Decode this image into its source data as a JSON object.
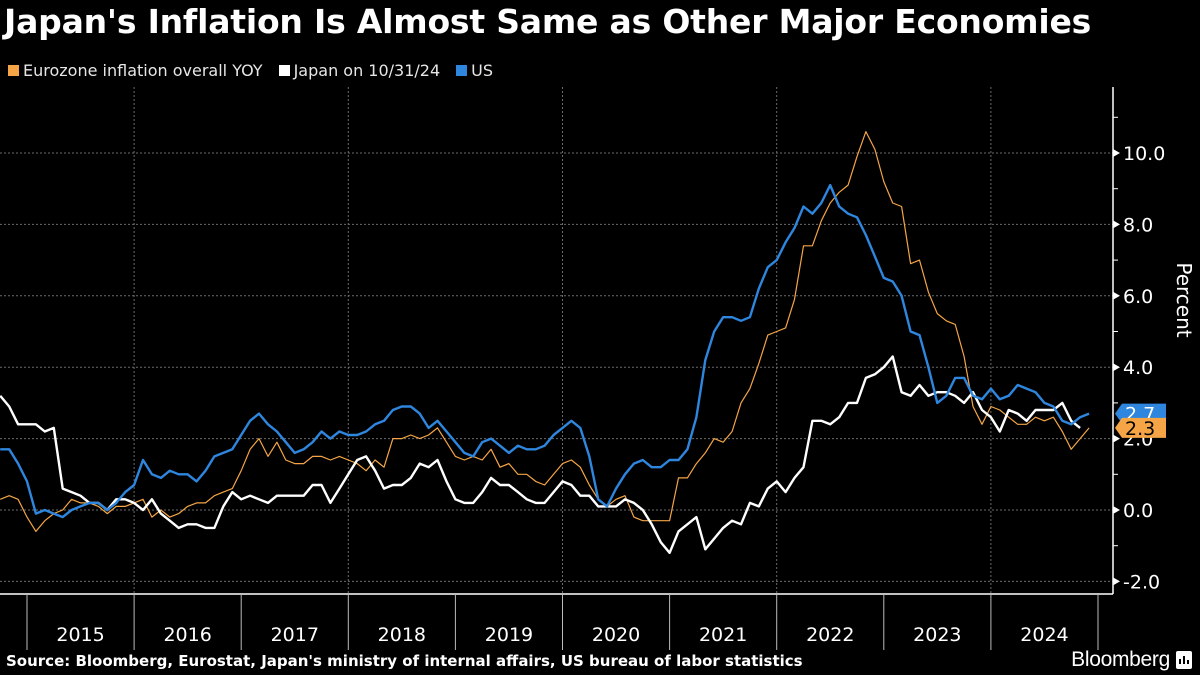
{
  "header": {
    "title": "Japan's Inflation Is Almost Same as Other Major Economies"
  },
  "footer": {
    "source": "Source: Bloomberg, Eurostat, Japan's ministry of internal affairs, US bureau of labor statistics",
    "brand": "Bloomberg"
  },
  "colors": {
    "background": "#000000",
    "eurozone": "#f5a546",
    "japan": "#ffffff",
    "us": "#2e86de",
    "grid": "#6b6b6b"
  },
  "chart_data": {
    "type": "line",
    "title": "Japan's Inflation Is Almost Same as Other Major Economies",
    "xlabel": "",
    "ylabel": "Percent",
    "ylim": [
      -2.4,
      11.8
    ],
    "yticks": [
      "-2.0",
      "0.0",
      "2.0",
      "4.0",
      "6.0",
      "8.0",
      "10.0"
    ],
    "ytick_values": [
      -2,
      0,
      2,
      4,
      6,
      8,
      10
    ],
    "xlim": [
      "2014-09",
      "2024-12"
    ],
    "xticks": [
      "2015",
      "2016",
      "2017",
      "2018",
      "2019",
      "2020",
      "2021",
      "2022",
      "2023",
      "2024"
    ],
    "grid": true,
    "legend_position": "top-left",
    "x_start": "2014-09",
    "x_frequency": "monthly",
    "series": [
      {
        "name": "Eurozone inflation overall YOY",
        "color": "#f5a546",
        "last_label": "2.3",
        "values": [
          0.3,
          0.4,
          0.3,
          -0.2,
          -0.6,
          -0.3,
          -0.1,
          0.0,
          0.3,
          0.2,
          0.2,
          0.1,
          -0.1,
          0.1,
          0.1,
          0.2,
          0.3,
          -0.2,
          0.0,
          -0.2,
          -0.1,
          0.1,
          0.2,
          0.2,
          0.4,
          0.5,
          0.6,
          1.1,
          1.7,
          2.0,
          1.5,
          1.9,
          1.4,
          1.3,
          1.3,
          1.5,
          1.5,
          1.4,
          1.5,
          1.4,
          1.3,
          1.1,
          1.4,
          1.2,
          2.0,
          2.0,
          2.1,
          2.0,
          2.1,
          2.3,
          1.9,
          1.5,
          1.4,
          1.5,
          1.4,
          1.7,
          1.2,
          1.3,
          1.0,
          1.0,
          0.8,
          0.7,
          1.0,
          1.3,
          1.4,
          1.2,
          0.7,
          0.3,
          0.1,
          0.3,
          0.4,
          -0.2,
          -0.3,
          -0.3,
          -0.3,
          -0.3,
          0.9,
          0.9,
          1.3,
          1.6,
          2.0,
          1.9,
          2.2,
          3.0,
          3.4,
          4.1,
          4.9,
          5.0,
          5.1,
          5.9,
          7.4,
          7.4,
          8.1,
          8.6,
          8.9,
          9.1,
          9.9,
          10.6,
          10.1,
          9.2,
          8.6,
          8.5,
          6.9,
          7.0,
          6.1,
          5.5,
          5.3,
          5.2,
          4.3,
          2.9,
          2.4,
          2.9,
          2.8,
          2.6,
          2.4,
          2.4,
          2.6,
          2.5,
          2.6,
          2.2,
          1.7,
          2.0,
          2.3
        ]
      },
      {
        "name": "Japan on 10/31/24",
        "color": "#ffffff",
        "last_label": "",
        "values": [
          3.2,
          2.9,
          2.4,
          2.4,
          2.4,
          2.2,
          2.3,
          0.6,
          0.5,
          0.4,
          0.2,
          0.2,
          0.0,
          0.3,
          0.3,
          0.2,
          0.0,
          0.3,
          -0.1,
          -0.3,
          -0.5,
          -0.4,
          -0.4,
          -0.5,
          -0.5,
          0.1,
          0.5,
          0.3,
          0.4,
          0.3,
          0.2,
          0.4,
          0.4,
          0.4,
          0.4,
          0.7,
          0.7,
          0.2,
          0.6,
          1.0,
          1.4,
          1.5,
          1.1,
          0.6,
          0.7,
          0.7,
          0.9,
          1.3,
          1.2,
          1.4,
          0.8,
          0.3,
          0.2,
          0.2,
          0.5,
          0.9,
          0.7,
          0.7,
          0.5,
          0.3,
          0.2,
          0.2,
          0.5,
          0.8,
          0.7,
          0.4,
          0.4,
          0.1,
          0.1,
          0.1,
          0.3,
          0.2,
          0.0,
          -0.4,
          -0.9,
          -1.2,
          -0.6,
          -0.4,
          -0.2,
          -1.1,
          -0.8,
          -0.5,
          -0.3,
          -0.4,
          0.2,
          0.1,
          0.6,
          0.8,
          0.5,
          0.9,
          1.2,
          2.5,
          2.5,
          2.4,
          2.6,
          3.0,
          3.0,
          3.7,
          3.8,
          4.0,
          4.3,
          3.3,
          3.2,
          3.5,
          3.2,
          3.3,
          3.3,
          3.2,
          3.0,
          3.3,
          2.8,
          2.6,
          2.2,
          2.8,
          2.7,
          2.5,
          2.8,
          2.8,
          2.8,
          3.0,
          2.5,
          2.3
        ]
      },
      {
        "name": "US",
        "color": "#2e86de",
        "last_label": "2.7",
        "values": [
          1.7,
          1.7,
          1.3,
          0.8,
          -0.1,
          0.0,
          -0.1,
          -0.2,
          0.0,
          0.1,
          0.2,
          0.2,
          0.0,
          0.2,
          0.5,
          0.7,
          1.4,
          1.0,
          0.9,
          1.1,
          1.0,
          1.0,
          0.8,
          1.1,
          1.5,
          1.6,
          1.7,
          2.1,
          2.5,
          2.7,
          2.4,
          2.2,
          1.9,
          1.6,
          1.7,
          1.9,
          2.2,
          2.0,
          2.2,
          2.1,
          2.1,
          2.2,
          2.4,
          2.5,
          2.8,
          2.9,
          2.9,
          2.7,
          2.3,
          2.5,
          2.2,
          1.9,
          1.6,
          1.5,
          1.9,
          2.0,
          1.8,
          1.6,
          1.8,
          1.7,
          1.7,
          1.8,
          2.1,
          2.3,
          2.5,
          2.3,
          1.5,
          0.3,
          0.1,
          0.6,
          1.0,
          1.3,
          1.4,
          1.2,
          1.2,
          1.4,
          1.4,
          1.7,
          2.6,
          4.2,
          5.0,
          5.4,
          5.4,
          5.3,
          5.4,
          6.2,
          6.8,
          7.0,
          7.5,
          7.9,
          8.5,
          8.3,
          8.6,
          9.1,
          8.5,
          8.3,
          8.2,
          7.7,
          7.1,
          6.5,
          6.4,
          6.0,
          5.0,
          4.9,
          4.0,
          3.0,
          3.2,
          3.7,
          3.7,
          3.2,
          3.1,
          3.4,
          3.1,
          3.2,
          3.5,
          3.4,
          3.3,
          3.0,
          2.9,
          2.5,
          2.4,
          2.6,
          2.7
        ]
      }
    ]
  }
}
